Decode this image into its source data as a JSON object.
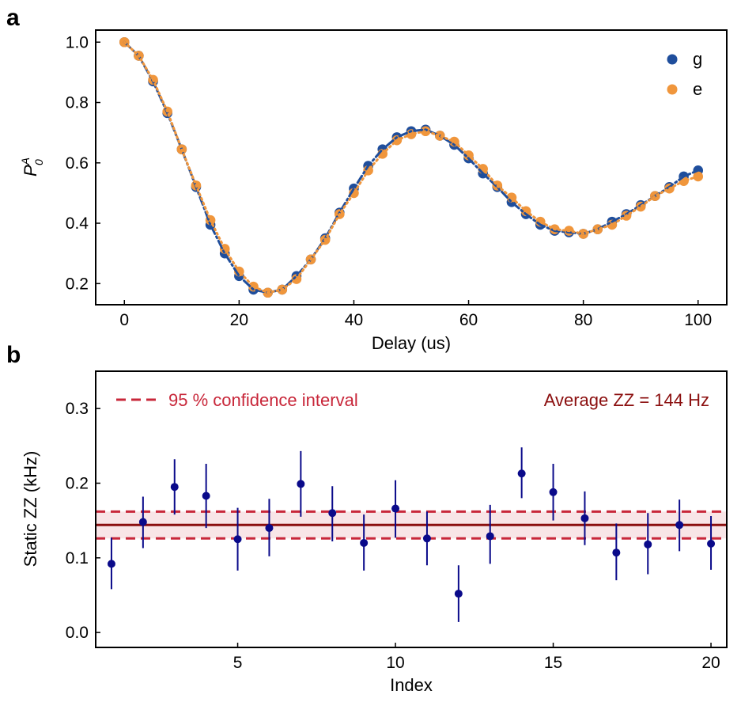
{
  "chart_data": [
    {
      "type": "scatter",
      "panel_label": "a",
      "xlabel": "Delay (us)",
      "ylabel": "P_0^A",
      "ylabel_display": {
        "base": "P",
        "sub": "0",
        "sup": "A"
      },
      "xlim": [
        -5,
        105
      ],
      "ylim": [
        0.13,
        1.04
      ],
      "xticks": [
        0,
        20,
        40,
        60,
        80,
        100
      ],
      "yticks": [
        0.2,
        0.4,
        0.6,
        0.8,
        1.0
      ],
      "xtick_labels": [
        "0",
        "20",
        "40",
        "60",
        "80",
        "100"
      ],
      "ytick_labels": [
        "0.2",
        "0.4",
        "0.6",
        "0.8",
        "1.0"
      ],
      "legend_position": "top-right",
      "grid": false,
      "series": [
        {
          "name": "g",
          "color": "#1f4e9c",
          "marker": "circle",
          "fit_line": "dashdot",
          "x": [
            0,
            2.5,
            5,
            7.5,
            10,
            12.5,
            15,
            17.5,
            20,
            22.5,
            25,
            27.5,
            30,
            32.5,
            35,
            37.5,
            40,
            42.5,
            45,
            47.5,
            50,
            52.5,
            55,
            57.5,
            60,
            62.5,
            65,
            67.5,
            70,
            72.5,
            75,
            77.5,
            80,
            82.5,
            85,
            87.5,
            90,
            92.5,
            95,
            97.5,
            100
          ],
          "y": [
            1.0,
            0.955,
            0.87,
            0.765,
            0.645,
            0.52,
            0.395,
            0.3,
            0.225,
            0.18,
            0.17,
            0.18,
            0.225,
            0.28,
            0.35,
            0.435,
            0.515,
            0.59,
            0.645,
            0.685,
            0.705,
            0.71,
            0.69,
            0.66,
            0.615,
            0.565,
            0.52,
            0.47,
            0.43,
            0.395,
            0.375,
            0.37,
            0.365,
            0.38,
            0.405,
            0.43,
            0.46,
            0.49,
            0.52,
            0.555,
            0.575
          ]
        },
        {
          "name": "e",
          "color": "#f0963c",
          "marker": "circle",
          "fit_line": "dotted",
          "x": [
            0,
            2.5,
            5,
            7.5,
            10,
            12.5,
            15,
            17.5,
            20,
            22.5,
            25,
            27.5,
            30,
            32.5,
            35,
            37.5,
            40,
            42.5,
            45,
            47.5,
            50,
            52.5,
            55,
            57.5,
            60,
            62.5,
            65,
            67.5,
            70,
            72.5,
            75,
            77.5,
            80,
            82.5,
            85,
            87.5,
            90,
            92.5,
            95,
            97.5,
            100
          ],
          "y": [
            1.0,
            0.955,
            0.875,
            0.77,
            0.645,
            0.525,
            0.41,
            0.315,
            0.24,
            0.19,
            0.17,
            0.18,
            0.215,
            0.28,
            0.345,
            0.43,
            0.5,
            0.575,
            0.63,
            0.675,
            0.695,
            0.705,
            0.69,
            0.67,
            0.625,
            0.58,
            0.525,
            0.485,
            0.44,
            0.405,
            0.38,
            0.375,
            0.365,
            0.38,
            0.395,
            0.425,
            0.455,
            0.49,
            0.515,
            0.54,
            0.555
          ]
        }
      ]
    },
    {
      "type": "scatter",
      "panel_label": "b",
      "xlabel": "Index",
      "ylabel": "Static ZZ (kHz)",
      "xlim": [
        0.5,
        20.5
      ],
      "ylim": [
        -0.02,
        0.35
      ],
      "xticks": [
        5,
        10,
        15,
        20
      ],
      "yticks": [
        0.0,
        0.1,
        0.2,
        0.3
      ],
      "xtick_labels": [
        "5",
        "10",
        "15",
        "20"
      ],
      "ytick_labels": [
        "0.0",
        "0.1",
        "0.2",
        "0.3"
      ],
      "grid": false,
      "marker_color": "#0a0a8a",
      "average_line": {
        "value": 0.144,
        "color": "#8b0f0f",
        "label": "Average ZZ = 144 Hz"
      },
      "confidence_interval": {
        "lower": 0.126,
        "upper": 0.162,
        "color": "#c8273a",
        "label": "95 % confidence interval"
      },
      "series": [
        {
          "name": "",
          "x": [
            1,
            2,
            3,
            4,
            5,
            6,
            7,
            8,
            9,
            10,
            11,
            12,
            13,
            14,
            15,
            16,
            17,
            18,
            19,
            20
          ],
          "y": [
            0.092,
            0.148,
            0.195,
            0.183,
            0.125,
            0.14,
            0.199,
            0.16,
            0.12,
            0.166,
            0.126,
            0.052,
            0.129,
            0.213,
            0.188,
            0.153,
            0.107,
            0.118,
            0.144,
            0.119
          ],
          "err_low": [
            0.058,
            0.113,
            0.158,
            0.14,
            0.083,
            0.102,
            0.155,
            0.122,
            0.083,
            0.127,
            0.09,
            0.014,
            0.092,
            0.18,
            0.15,
            0.117,
            0.07,
            0.078,
            0.109,
            0.084
          ],
          "err_high": [
            0.127,
            0.182,
            0.232,
            0.226,
            0.167,
            0.179,
            0.243,
            0.196,
            0.158,
            0.204,
            0.162,
            0.09,
            0.171,
            0.248,
            0.226,
            0.189,
            0.146,
            0.16,
            0.178,
            0.156
          ]
        }
      ]
    }
  ]
}
